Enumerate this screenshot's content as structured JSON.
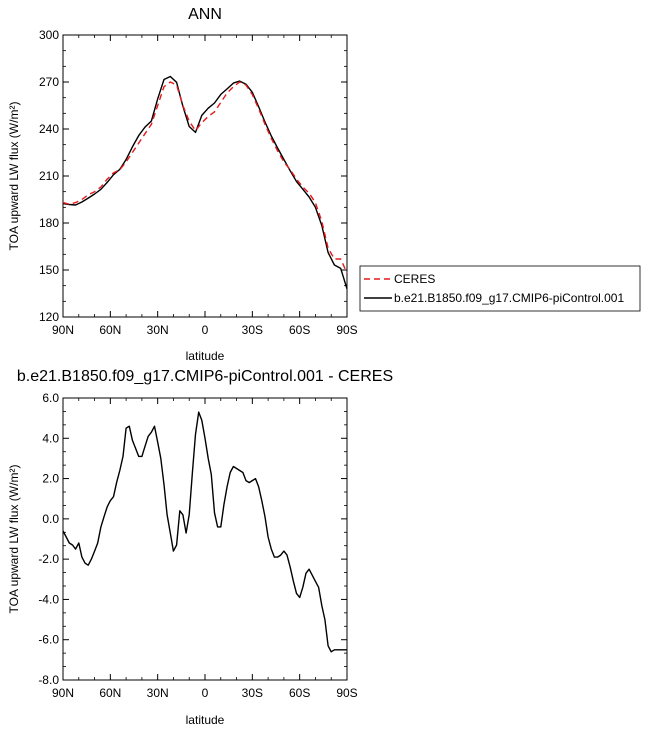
{
  "chart_data": [
    {
      "type": "line",
      "title": "ANN",
      "xlabel": "latitude",
      "ylabel": "TOA upward LW flux (W/m²)",
      "xlim": [
        90,
        -90
      ],
      "ylim": [
        120,
        300
      ],
      "xticks": [
        90,
        60,
        30,
        0,
        -30,
        -60,
        -90
      ],
      "xticklabels": [
        "90N",
        "60N",
        "30N",
        "0",
        "30S",
        "60S",
        "90S"
      ],
      "yticks": [
        120,
        150,
        180,
        210,
        240,
        270,
        300
      ],
      "yticklabels": [
        "120",
        "150",
        "180",
        "210",
        "240",
        "270",
        "300"
      ],
      "legend_position": "right",
      "x": [
        90,
        86,
        82,
        78,
        74,
        70,
        66,
        62,
        58,
        54,
        50,
        46,
        42,
        38,
        34,
        30,
        26,
        22,
        18,
        14,
        10,
        6,
        2,
        -2,
        -6,
        -10,
        -14,
        -18,
        -22,
        -26,
        -30,
        -34,
        -38,
        -42,
        -46,
        -50,
        -54,
        -58,
        -62,
        -66,
        -70,
        -74,
        -78,
        -82,
        -86,
        -90
      ],
      "series": [
        {
          "name": "CERES",
          "color": "#e41a1c",
          "style": "dashed",
          "values": [
            193,
            192,
            193,
            195,
            198,
            200,
            203,
            208,
            212,
            214,
            219,
            225,
            231,
            237,
            243,
            255,
            267,
            270,
            268,
            255,
            245,
            239,
            244,
            248,
            251,
            257,
            263,
            267,
            270,
            268,
            262,
            253,
            243,
            234,
            226,
            219,
            214,
            208,
            203,
            199,
            193,
            181,
            164,
            157,
            157,
            148
          ]
        },
        {
          "name": "b.e21.B1850.f09_g17.CMIP6-piControl.001",
          "color": "#000000",
          "style": "solid",
          "values": [
            192.4,
            191.8,
            191.5,
            193.4,
            195.9,
            198.5,
            201.5,
            205.9,
            210.8,
            214.2,
            220.5,
            228.6,
            235.8,
            241.2,
            245.1,
            259.3,
            271.6,
            273.5,
            269.8,
            254.5,
            241.6,
            237.8,
            248.7,
            253.3,
            256.6,
            262.1,
            265.6,
            269.3,
            270.6,
            268.6,
            263.4,
            254.3,
            244.5,
            235.5,
            227.9,
            220.5,
            213.3,
            206.5,
            201.6,
            196.6,
            190.0,
            178.4,
            161.2,
            153.2,
            151.0,
            138.0
          ]
        }
      ]
    },
    {
      "type": "line",
      "title": "b.e21.B1850.f09_g17.CMIP6-piControl.001 - CERES",
      "xlabel": "latitude",
      "ylabel": "TOA upward LW flux (W/m²)",
      "xlim": [
        90,
        -90
      ],
      "ylim": [
        -8,
        6
      ],
      "xticks": [
        90,
        60,
        30,
        0,
        -30,
        -60,
        -90
      ],
      "xticklabels": [
        "90N",
        "60N",
        "30N",
        "0",
        "30S",
        "60S",
        "90S"
      ],
      "yticks": [
        -8,
        -6,
        -4,
        -2,
        0,
        2,
        4,
        6
      ],
      "yticklabels": [
        "-8.0",
        "-6.0",
        "-4.0",
        "-2.0",
        "0.0",
        "2.0",
        "4.0",
        "6.0"
      ],
      "x": [
        90,
        88,
        86,
        84,
        82,
        80,
        78,
        76,
        74,
        72,
        70,
        68,
        66,
        64,
        62,
        60,
        58,
        56,
        54,
        52,
        50,
        48,
        46,
        44,
        42,
        40,
        38,
        36,
        34,
        32,
        30,
        28,
        26,
        24,
        22,
        20,
        18,
        16,
        14,
        12,
        10,
        8,
        6,
        4,
        2,
        0,
        -2,
        -4,
        -6,
        -8,
        -10,
        -12,
        -14,
        -16,
        -18,
        -20,
        -22,
        -24,
        -26,
        -28,
        -30,
        -32,
        -34,
        -36,
        -38,
        -40,
        -42,
        -44,
        -46,
        -48,
        -50,
        -52,
        -54,
        -56,
        -58,
        -60,
        -62,
        -64,
        -66,
        -68,
        -70,
        -72,
        -74,
        -76,
        -78,
        -80,
        -82,
        -84,
        -86,
        -88,
        -90
      ],
      "series": [
        {
          "name": "",
          "color": "#000000",
          "style": "solid",
          "values": [
            -0.6,
            -0.9,
            -1.2,
            -1.3,
            -1.5,
            -1.2,
            -1.9,
            -2.2,
            -2.3,
            -2.0,
            -1.6,
            -1.2,
            -0.4,
            0.1,
            0.6,
            0.9,
            1.1,
            1.8,
            2.4,
            3.1,
            4.5,
            4.6,
            3.9,
            3.5,
            3.1,
            3.1,
            3.6,
            4.1,
            4.3,
            4.6,
            3.8,
            3.0,
            1.7,
            0.2,
            -0.7,
            -1.6,
            -1.3,
            0.4,
            0.2,
            -0.7,
            0.2,
            2.3,
            4.2,
            5.3,
            4.9,
            4.0,
            3.0,
            2.2,
            0.3,
            -0.4,
            -0.4,
            0.7,
            1.6,
            2.3,
            2.6,
            2.5,
            2.4,
            2.3,
            1.9,
            1.8,
            1.9,
            2.0,
            1.6,
            0.9,
            0.1,
            -0.9,
            -1.5,
            -1.9,
            -1.9,
            -1.8,
            -1.6,
            -1.8,
            -2.4,
            -3.1,
            -3.7,
            -3.9,
            -3.4,
            -2.7,
            -2.5,
            -2.8,
            -3.1,
            -3.4,
            -4.3,
            -5.0,
            -6.3,
            -6.6,
            -6.5,
            -6.5,
            -6.5,
            -6.5,
            -6.5
          ]
        }
      ]
    }
  ]
}
